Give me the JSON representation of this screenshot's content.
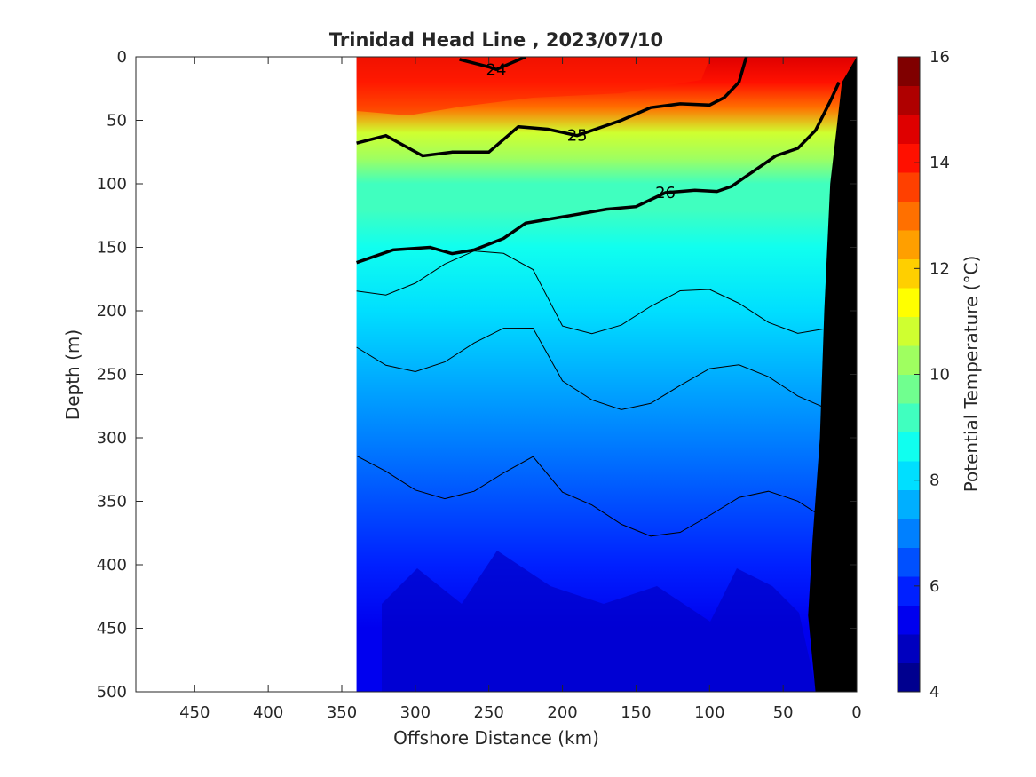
{
  "chart_data": {
    "type": "heatmap",
    "title": "Trinidad Head Line , 2023/07/10",
    "xlabel": "Offshore Distance (km)",
    "ylabel": "Depth (m)",
    "colorbar_label": "Potential Temperature (°C)",
    "xlim": [
      490,
      0
    ],
    "ylim": [
      0,
      500
    ],
    "x_ticks": [
      450,
      400,
      350,
      300,
      250,
      200,
      150,
      100,
      50,
      0
    ],
    "y_ticks": [
      0,
      50,
      100,
      150,
      200,
      250,
      300,
      350,
      400,
      450,
      500
    ],
    "colorbar_ticks": [
      4,
      6,
      8,
      10,
      12,
      14,
      16
    ],
    "colorbar_range": [
      4,
      16
    ],
    "colormap": [
      "#00008f",
      "#0000bf",
      "#0000ef",
      "#0020ff",
      "#0050ff",
      "#0080ff",
      "#00afff",
      "#00dfff",
      "#10ffef",
      "#40ffbf",
      "#70ff8f",
      "#9fff60",
      "#cfff30",
      "#ffff00",
      "#ffcf00",
      "#ff9f00",
      "#ff7000",
      "#ff4000",
      "#ff1000",
      "#df0000",
      "#af0000",
      "#800000"
    ],
    "data_x_extent_km": [
      340,
      0
    ],
    "temperature_profile": {
      "depth_m": [
        0,
        20,
        40,
        60,
        80,
        100,
        120,
        150,
        200,
        250,
        300,
        350,
        400,
        450,
        500
      ],
      "temperature_c": [
        14.5,
        14.0,
        12.8,
        11.0,
        10.0,
        9.4,
        9.0,
        8.5,
        7.9,
        7.3,
        6.8,
        6.3,
        5.9,
        5.6,
        5.3
      ]
    },
    "density_contours": [
      {
        "label": "24",
        "x": [
          270,
          250,
          245,
          225
        ],
        "depth": [
          2,
          8,
          10,
          0
        ]
      },
      {
        "label": "25",
        "x": [
          340,
          320,
          295,
          275,
          250,
          230,
          210,
          190,
          160,
          140,
          120,
          100,
          90,
          80,
          75
        ],
        "depth": [
          68,
          62,
          78,
          75,
          75,
          55,
          57,
          62,
          50,
          40,
          37,
          38,
          32,
          20,
          0
        ]
      },
      {
        "label": "26",
        "x": [
          340,
          315,
          290,
          275,
          260,
          240,
          225,
          195,
          170,
          150,
          130,
          110,
          95,
          85,
          70,
          55,
          40,
          28,
          18,
          12
        ],
        "depth": [
          162,
          152,
          150,
          155,
          152,
          143,
          131,
          125,
          120,
          118,
          107,
          105,
          106,
          102,
          90,
          78,
          72,
          58,
          35,
          20
        ]
      }
    ],
    "bottom_profile": {
      "x": [
        0,
        10,
        18,
        22,
        25,
        30,
        33,
        28,
        27
      ],
      "depth": [
        0,
        20,
        100,
        200,
        300,
        380,
        440,
        500,
        500
      ]
    }
  }
}
